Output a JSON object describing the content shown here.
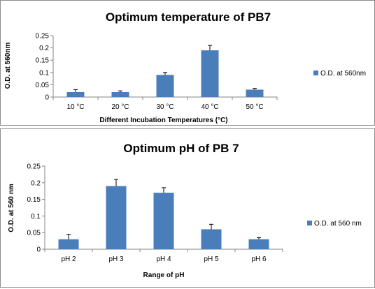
{
  "chart_data": [
    {
      "type": "bar",
      "title": "Optimum temperature of PB7",
      "xlabel": "Different Incubation Temperatures (°C)",
      "ylabel": "O.D. at 560nm",
      "categories": [
        "10 °C",
        "20 °C",
        "30 °C",
        "40 °C",
        "50 °C"
      ],
      "series": [
        {
          "name": "O.D. at 560nm",
          "values": [
            0.02,
            0.02,
            0.09,
            0.19,
            0.03
          ],
          "errors": [
            0.01,
            0.005,
            0.01,
            0.02,
            0.005
          ]
        }
      ],
      "ylim": [
        0,
        0.25
      ],
      "yticks": [
        "0",
        "0.05",
        "0.1",
        "0.15",
        "0.2",
        "0.25"
      ],
      "legend": "right",
      "grid": false,
      "bar_color": "#4a7ebb"
    },
    {
      "type": "bar",
      "title": "Optimum pH of PB 7",
      "xlabel": "Range of pH",
      "ylabel": "O.D. at 560 nm",
      "categories": [
        "pH 2",
        "pH 3",
        "pH 4",
        "pH 5",
        "pH 6"
      ],
      "series": [
        {
          "name": "O.D. at 560 nm",
          "values": [
            0.03,
            0.19,
            0.17,
            0.06,
            0.03
          ],
          "errors": [
            0.015,
            0.02,
            0.015,
            0.015,
            0.005
          ]
        }
      ],
      "ylim": [
        0,
        0.25
      ],
      "yticks": [
        "0",
        "0.05",
        "0.1",
        "0.15",
        "0.2",
        "0.25"
      ],
      "legend": "right",
      "grid": false,
      "bar_color": "#4a7ebb"
    }
  ]
}
